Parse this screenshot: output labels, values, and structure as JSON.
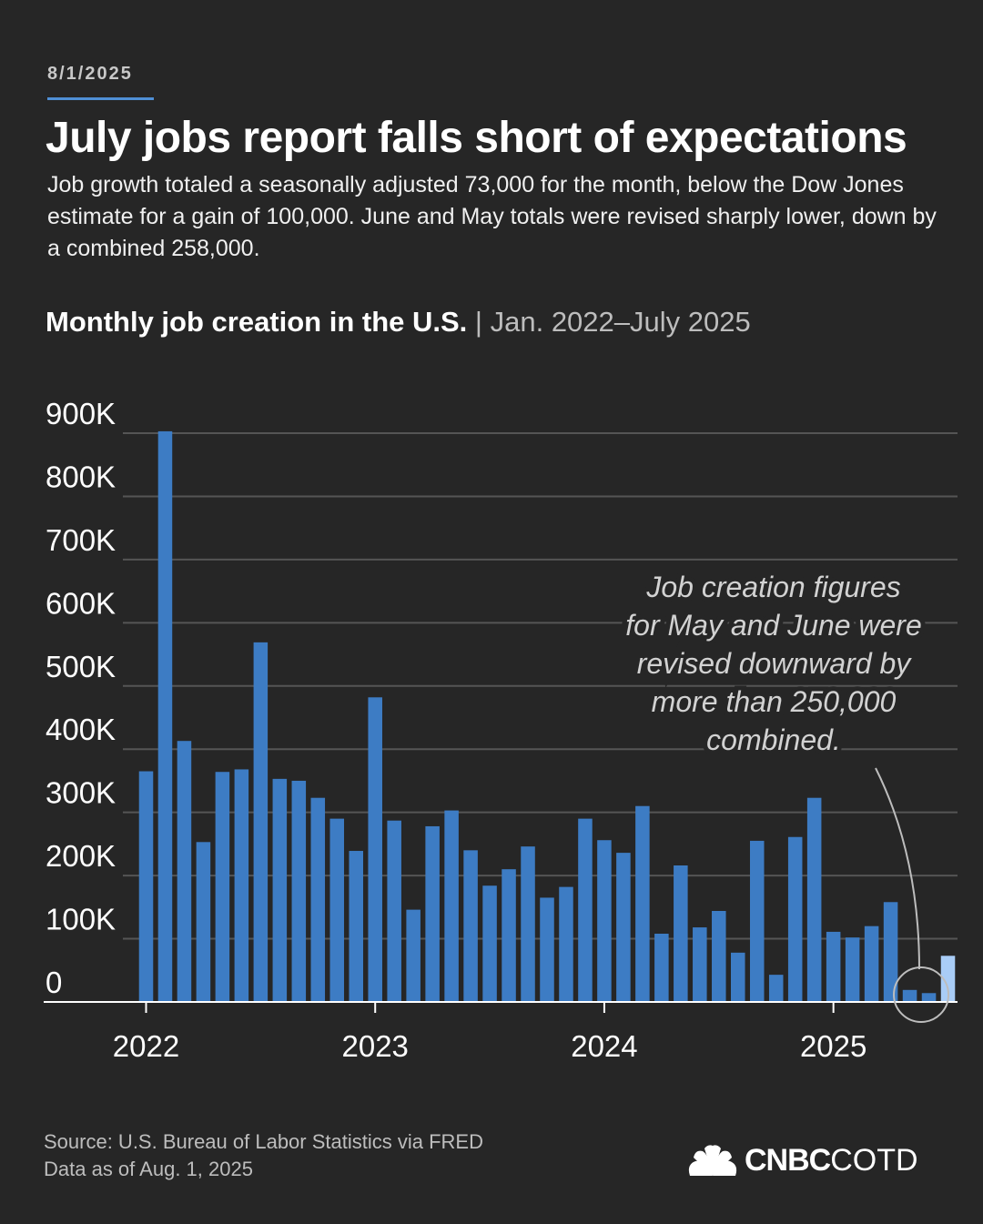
{
  "header": {
    "date": "8/1/2025",
    "title": "July jobs report falls short of expectations",
    "dek": "Job growth totaled a seasonally adjusted 73,000 for the month, below the Dow Jones estimate for a gain of 100,000. June and May totals were revised sharply lower, down by a combined 258,000."
  },
  "chart_header": {
    "title": "Monthly job creation in the U.S.",
    "separator": "|",
    "range": "Jan. 2022–July 2025"
  },
  "colors": {
    "background": "#262626",
    "bar": "#3d7cc4",
    "bar_latest": "#a9cdf7",
    "gridline": "#555555",
    "accent": "#4f8fd6"
  },
  "chart_data": {
    "type": "bar",
    "title": "Monthly job creation in the U.S.",
    "subtitle": "Jan. 2022–July 2025",
    "xlabel": "",
    "ylabel": "",
    "ylim": [
      0,
      900000
    ],
    "y_ticks": [
      {
        "value": 0,
        "label": "0"
      },
      {
        "value": 100000,
        "label": "100K"
      },
      {
        "value": 200000,
        "label": "200K"
      },
      {
        "value": 300000,
        "label": "300K"
      },
      {
        "value": 400000,
        "label": "400K"
      },
      {
        "value": 500000,
        "label": "500K"
      },
      {
        "value": 600000,
        "label": "600K"
      },
      {
        "value": 700000,
        "label": "700K"
      },
      {
        "value": 800000,
        "label": "800K"
      },
      {
        "value": 900000,
        "label": "900K"
      }
    ],
    "x_ticks": [
      {
        "index": 0,
        "label": "2022"
      },
      {
        "index": 12,
        "label": "2023"
      },
      {
        "index": 24,
        "label": "2024"
      },
      {
        "index": 36,
        "label": "2025"
      }
    ],
    "categories": [
      "Jan 2022",
      "Feb 2022",
      "Mar 2022",
      "Apr 2022",
      "May 2022",
      "Jun 2022",
      "Jul 2022",
      "Aug 2022",
      "Sep 2022",
      "Oct 2022",
      "Nov 2022",
      "Dec 2022",
      "Jan 2023",
      "Feb 2023",
      "Mar 2023",
      "Apr 2023",
      "May 2023",
      "Jun 2023",
      "Jul 2023",
      "Aug 2023",
      "Sep 2023",
      "Oct 2023",
      "Nov 2023",
      "Dec 2023",
      "Jan 2024",
      "Feb 2024",
      "Mar 2024",
      "Apr 2024",
      "May 2024",
      "Jun 2024",
      "Jul 2024",
      "Aug 2024",
      "Sep 2024",
      "Oct 2024",
      "Nov 2024",
      "Dec 2024",
      "Jan 2025",
      "Feb 2025",
      "Mar 2025",
      "Apr 2025",
      "May 2025",
      "Jun 2025",
      "Jul 2025"
    ],
    "values": [
      365000,
      903000,
      413000,
      253000,
      364000,
      368000,
      569000,
      353000,
      350000,
      323000,
      290000,
      239000,
      482000,
      287000,
      146000,
      278000,
      303000,
      240000,
      184000,
      210000,
      246000,
      165000,
      182000,
      290000,
      256000,
      236000,
      310000,
      108000,
      216000,
      118000,
      144000,
      78000,
      255000,
      43000,
      261000,
      323000,
      111000,
      102000,
      120000,
      158000,
      19000,
      14000,
      73000
    ],
    "highlight_index": 42,
    "annotation": {
      "text": "Job creation figures for May and June were revised downward by more than 250,000 combined.",
      "targets": [
        "May 2025",
        "Jun 2025"
      ]
    }
  },
  "footer": {
    "source": "Source: U.S. Bureau of Labor Statistics via FRED",
    "as_of": "Data as of Aug. 1, 2025",
    "brand_bold": "CNBC",
    "brand_light": "COTD",
    "brand_icon": "nbc-peacock-icon"
  }
}
